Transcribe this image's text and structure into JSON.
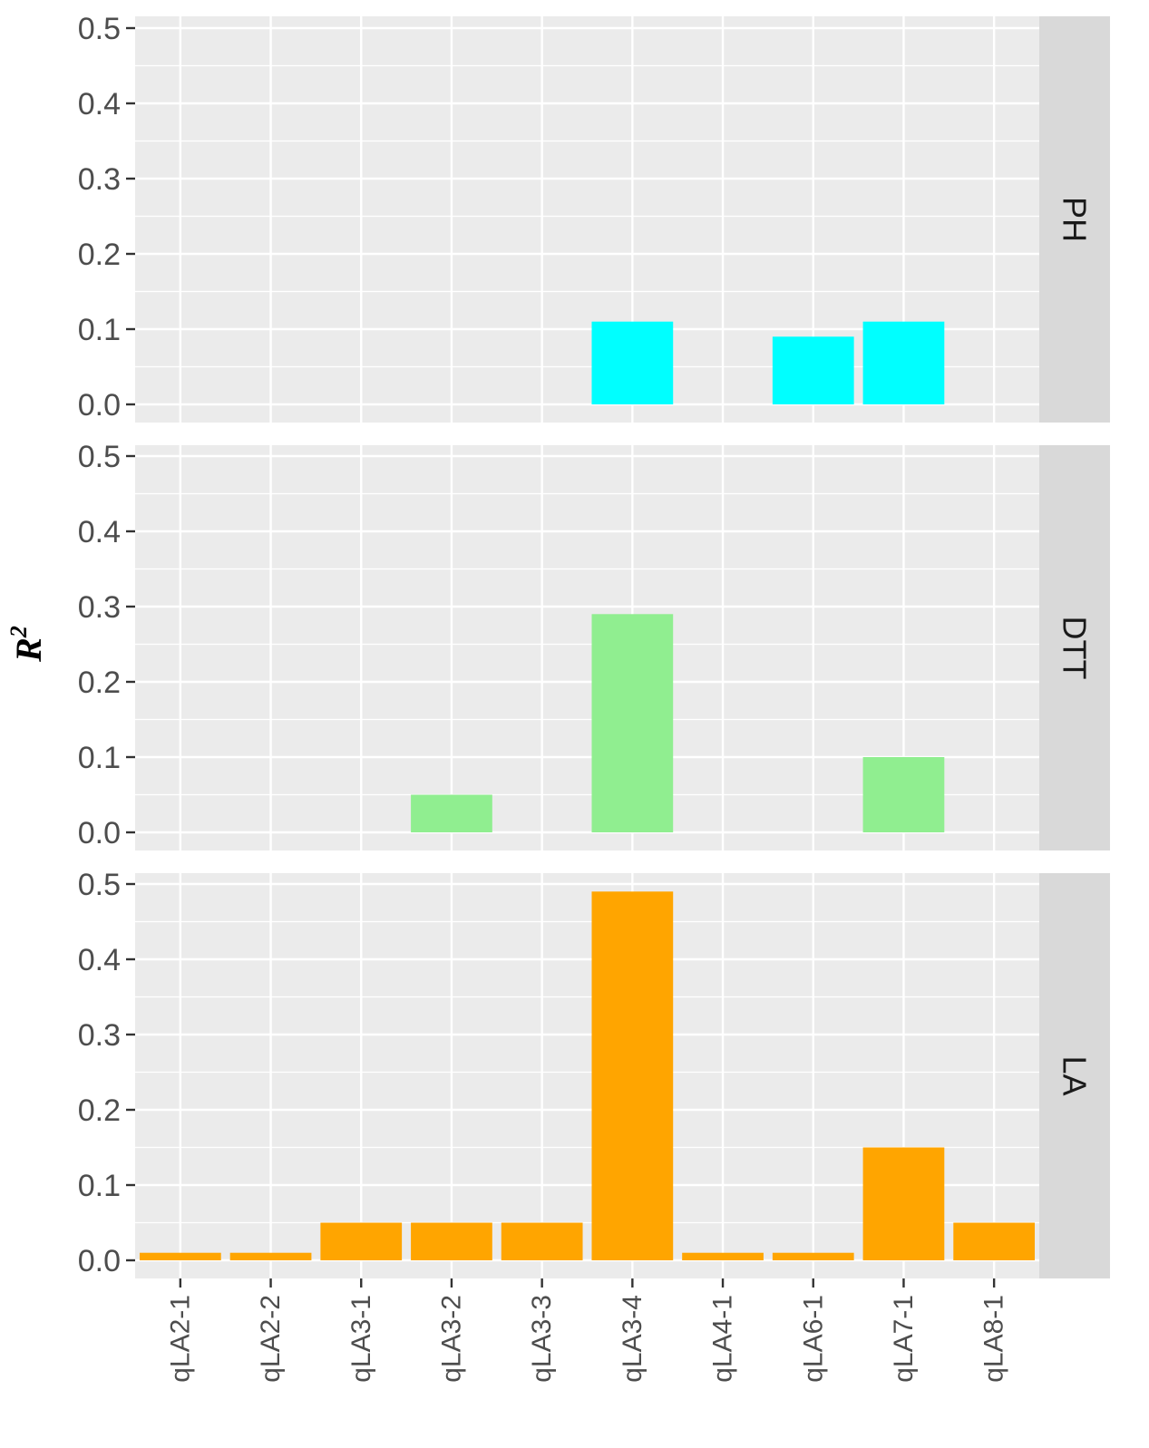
{
  "chart_data": {
    "type": "bar",
    "ylabel": "R",
    "ylabel_superscript": "2",
    "ylim": [
      0,
      0.5
    ],
    "yticks": [
      "0.0",
      "0.1",
      "0.2",
      "0.3",
      "0.4",
      "0.5"
    ],
    "categories": [
      "qLA2-1",
      "qLA2-2",
      "qLA3-1",
      "qLA3-2",
      "qLA3-3",
      "qLA3-4",
      "qLA4-1",
      "qLA6-1",
      "qLA7-1",
      "qLA8-1"
    ],
    "grid": true,
    "panel_background": "#ebebeb",
    "strip_background": "#d9d9d9",
    "facets": [
      {
        "name": "PH",
        "color": "#00ffff",
        "values": [
          null,
          null,
          null,
          null,
          null,
          0.11,
          null,
          0.09,
          0.11,
          null
        ]
      },
      {
        "name": "DTT",
        "color": "#90ee90",
        "values": [
          null,
          null,
          null,
          0.05,
          null,
          0.29,
          null,
          null,
          0.1,
          null
        ]
      },
      {
        "name": "LA",
        "color": "#ffa500",
        "values": [
          0.01,
          0.01,
          0.05,
          0.05,
          0.05,
          0.49,
          0.01,
          0.01,
          0.15,
          0.05
        ]
      }
    ]
  }
}
